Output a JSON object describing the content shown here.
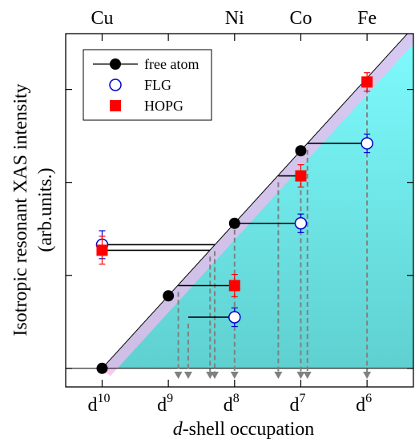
{
  "chart_data": {
    "type": "scatter",
    "title": "",
    "xlabel": {
      "italic": "d",
      "rest": "-shell occupation"
    },
    "ylabel_line1": "Isotropic resonant  XAS  intensity",
    "ylabel_line2": "(arb.units.)",
    "x_reversed": true,
    "xlim": [
      10.55,
      5.3
    ],
    "ylim": [
      -0.2,
      3.6
    ],
    "y_ticks": [
      0,
      1,
      2,
      3
    ],
    "x_ticks": [
      {
        "x": 10,
        "label": "d",
        "exp": "10"
      },
      {
        "x": 9,
        "label": "d",
        "exp": "9"
      },
      {
        "x": 8,
        "label": "d",
        "exp": "8"
      },
      {
        "x": 7,
        "label": "d",
        "exp": "7"
      },
      {
        "x": 6,
        "label": "d",
        "exp": "6"
      }
    ],
    "top_ticks": [
      10,
      9,
      8,
      7,
      6
    ],
    "top_labels": [
      {
        "x": 10,
        "text": "Cu"
      },
      {
        "x": 8,
        "text": "Ni"
      },
      {
        "x": 7,
        "text": "Co"
      },
      {
        "x": 6,
        "text": "Fe"
      }
    ],
    "colors": {
      "free_atom": "#000000",
      "FLG": "#0000cc",
      "HOPG": "#ff0000",
      "fill_top": "#7ffcff",
      "fill_bottom": "#5fd0d0",
      "band": "#f4b8ec",
      "arrow": "#808080"
    },
    "diagonal": {
      "x": [
        10,
        5.3
      ],
      "y": [
        0,
        3.67
      ]
    },
    "series": [
      {
        "name": "free atom",
        "marker": "filled-circle",
        "x": [
          10,
          9,
          8,
          7
        ],
        "y": [
          0,
          0.78,
          1.56,
          2.34
        ]
      },
      {
        "name": "FLG",
        "marker": "open-circle",
        "x": [
          10,
          8,
          7,
          6
        ],
        "y": [
          1.33,
          0.55,
          1.56,
          2.42
        ],
        "err": [
          0.15,
          0.1,
          0.1,
          0.1
        ]
      },
      {
        "name": "HOPG",
        "marker": "filled-square",
        "x": [
          10,
          8,
          7,
          6
        ],
        "y": [
          1.27,
          0.89,
          2.07,
          3.08
        ],
        "err": [
          0.15,
          0.12,
          0.12,
          0.1
        ]
      }
    ],
    "connectors": [
      {
        "y": 1.33,
        "x_from": 10,
        "x_to": 8.3
      },
      {
        "y": 1.27,
        "x_from": 10,
        "x_to": 8.37
      },
      {
        "y": 0.55,
        "x_from": 8,
        "x_to": 8.7
      },
      {
        "y": 0.89,
        "x_from": 8,
        "x_to": 8.85
      },
      {
        "y": 1.56,
        "x_from": 7,
        "x_to": 8
      },
      {
        "y": 2.07,
        "x_from": 7,
        "x_to": 7.34
      },
      {
        "y": 2.42,
        "x_from": 6,
        "x_to": 6.9
      }
    ],
    "legend": {
      "position": "top-left",
      "entries": [
        "free atom",
        "FLG",
        "HOPG"
      ]
    }
  }
}
